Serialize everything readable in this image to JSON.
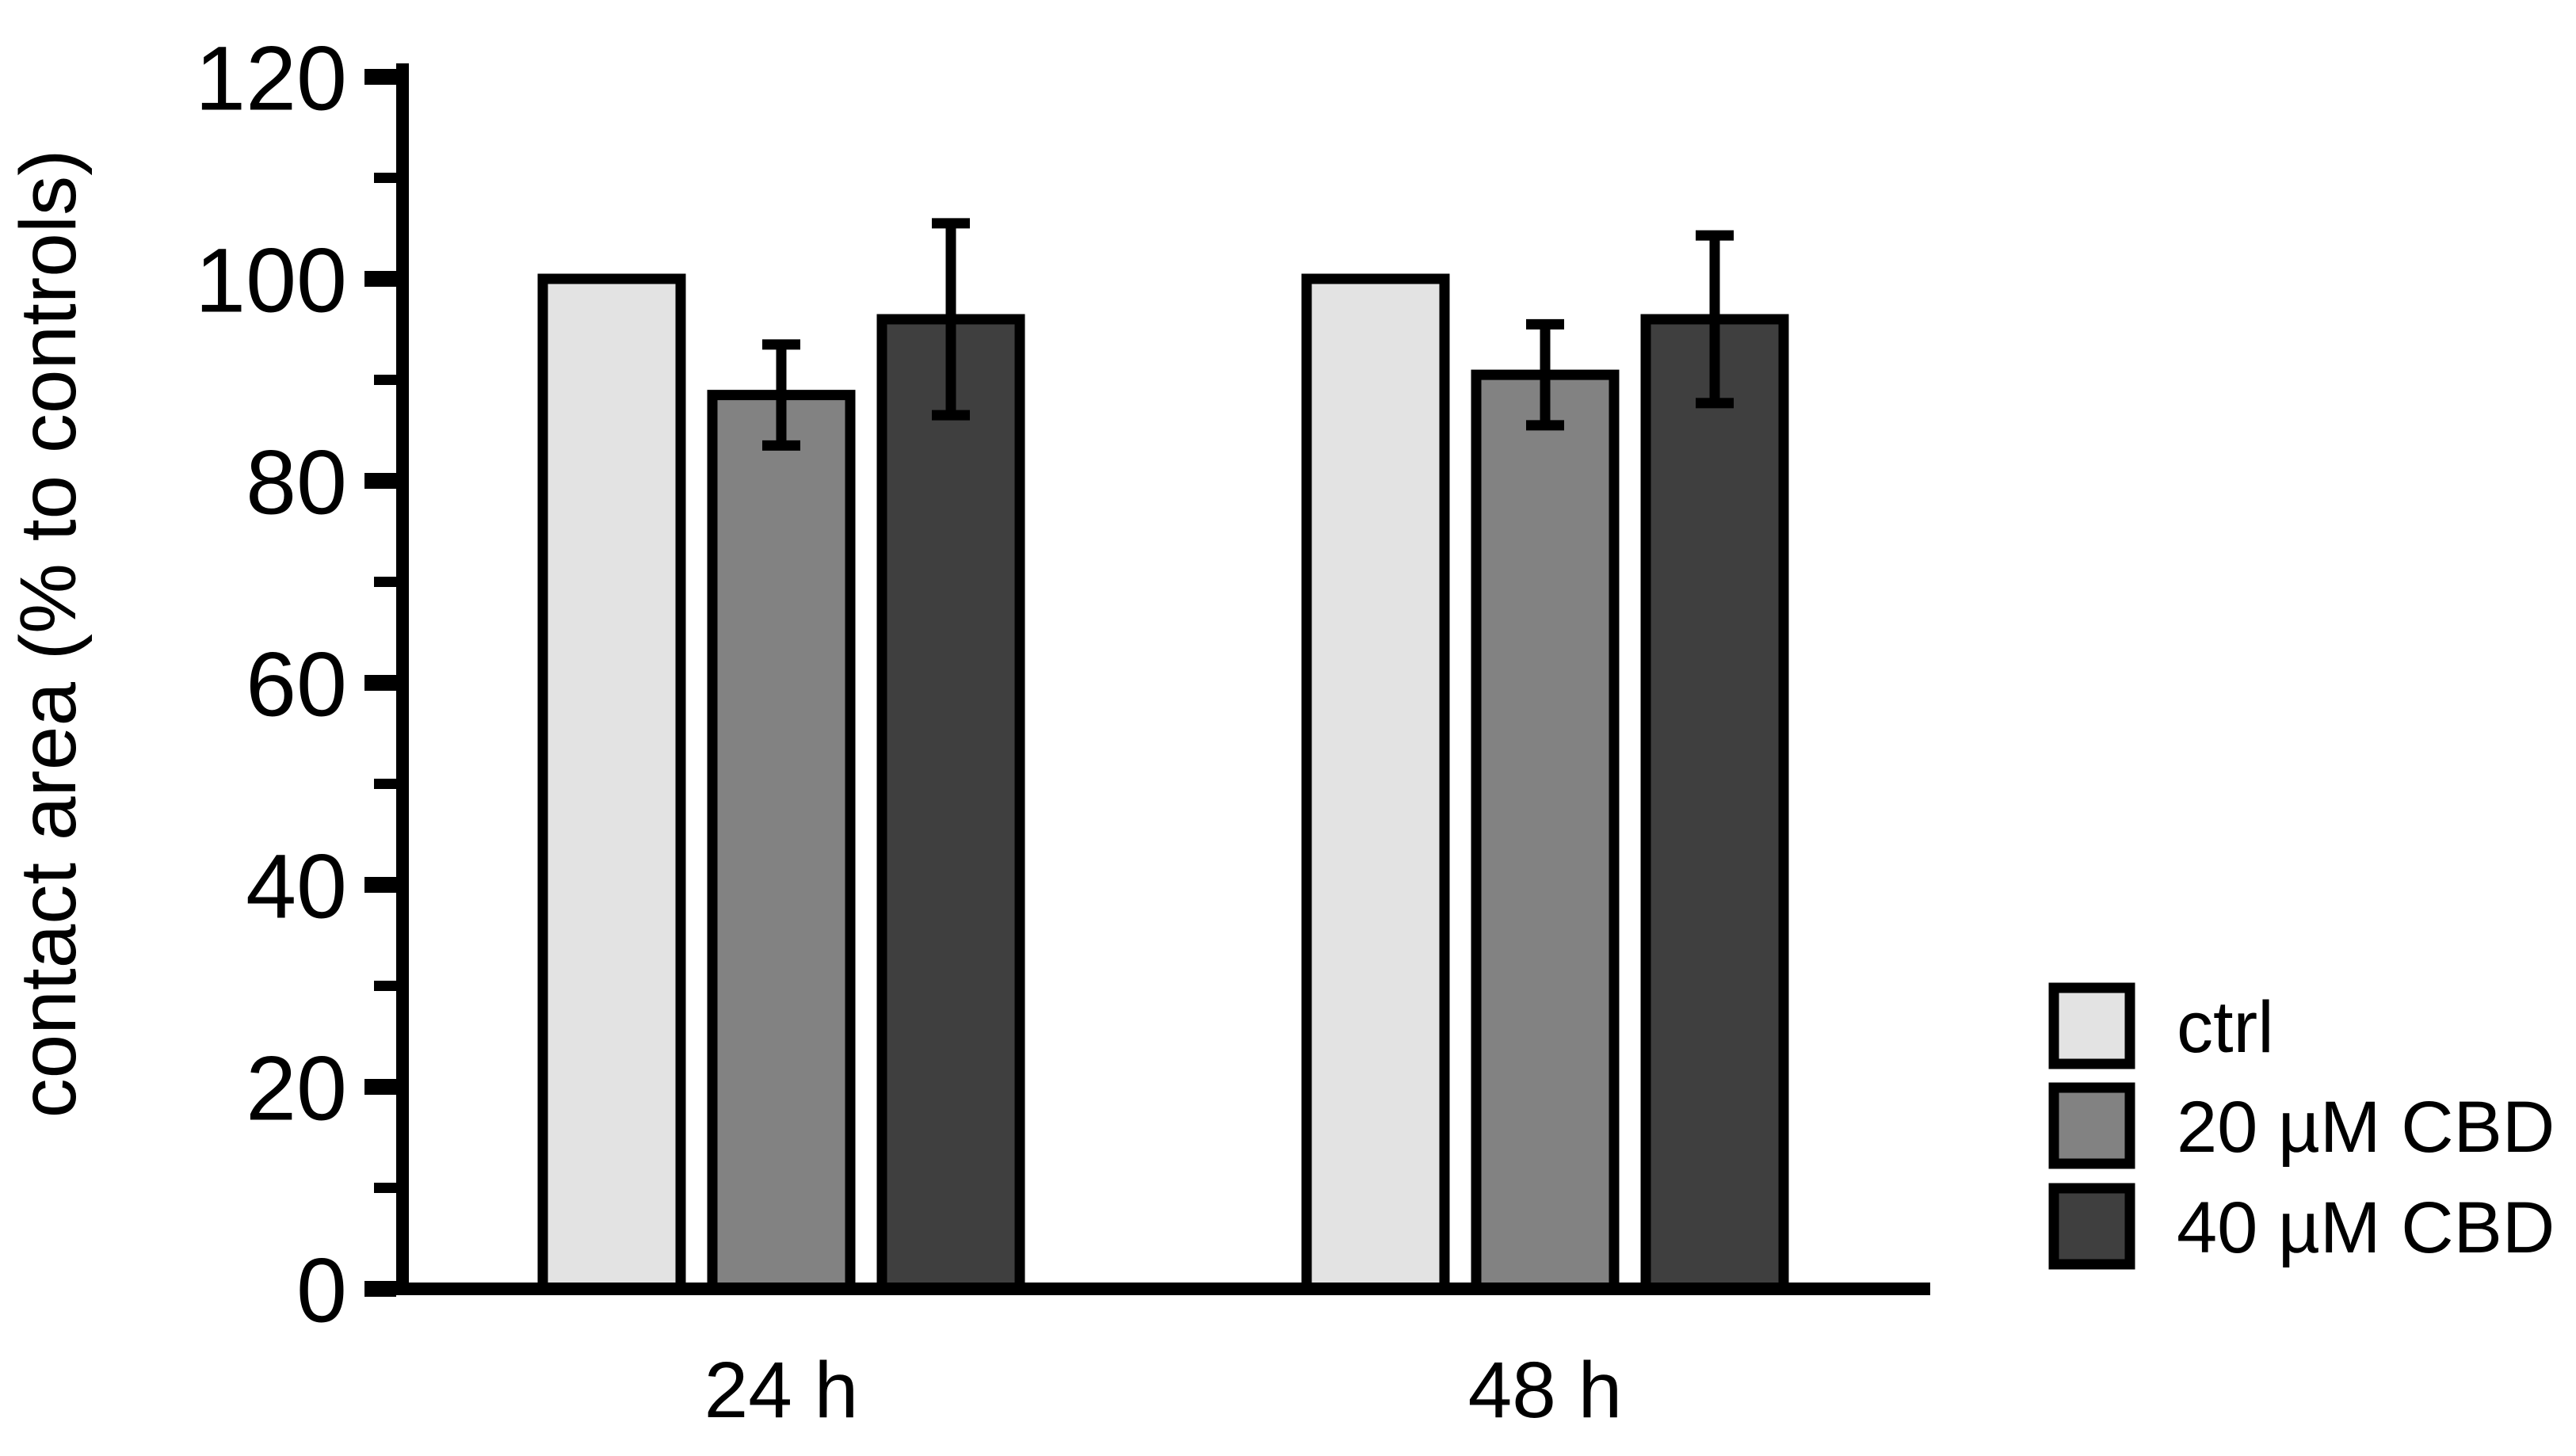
{
  "figure": {
    "background": "#ffffff",
    "axis_color": "#000000",
    "text_color": "#000000"
  },
  "chart_data": {
    "type": "bar",
    "title": "",
    "xlabel": "",
    "ylabel": "contact area (% to controls)",
    "categories": [
      "24 h",
      "48 h"
    ],
    "series": [
      {
        "name": "ctrl",
        "color": "#e3e3e3",
        "values": [
          100,
          100
        ],
        "errors": [
          0,
          0
        ]
      },
      {
        "name": "20 µM CBD",
        "color": "#828282",
        "values": [
          88.5,
          90.5
        ],
        "errors": [
          5,
          5
        ]
      },
      {
        "name": "40 µM CBD",
        "color": "#3f3f3f",
        "values": [
          96,
          96
        ],
        "errors": [
          9.5,
          8.3
        ]
      }
    ],
    "ylim": [
      0,
      120
    ],
    "yticks": [
      0,
      20,
      40,
      60,
      80,
      100,
      120
    ],
    "ytick_minor_step": 10,
    "grid": false,
    "error_bar_color": "#000000",
    "bar_border_color": "#000000",
    "legend_position": "right-bottom"
  }
}
